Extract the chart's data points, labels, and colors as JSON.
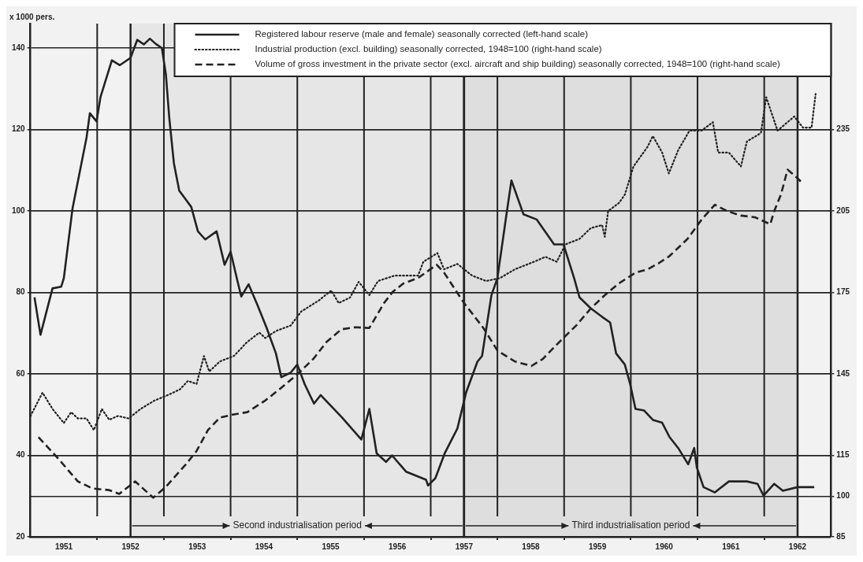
{
  "chart_data": {
    "type": "line",
    "ylabel": "x 1000 pers.",
    "legend": "top right",
    "grid": true,
    "marker": "none",
    "xlim": [
      1951,
      1963
    ],
    "xticks": [
      {
        "value": 1951.5,
        "label": "1951"
      },
      {
        "value": 1952.5,
        "label": "1952"
      },
      {
        "value": 1953.5,
        "label": "1953"
      },
      {
        "value": 1954.5,
        "label": "1954"
      },
      {
        "value": 1955.5,
        "label": "1955"
      },
      {
        "value": 1956.5,
        "label": "1956"
      },
      {
        "value": 1957.5,
        "label": "1957"
      },
      {
        "value": 1958.5,
        "label": "1958"
      },
      {
        "value": 1959.5,
        "label": "1959"
      },
      {
        "value": 1960.5,
        "label": "1960"
      },
      {
        "value": 1961.5,
        "label": "1961"
      },
      {
        "value": 1962.5,
        "label": "1962"
      },
      {
        "value": 1952,
        "label": null
      },
      {
        "value": 1953,
        "label": null
      },
      {
        "value": 1954,
        "label": null
      },
      {
        "value": 1955,
        "label": null
      },
      {
        "value": 1956,
        "label": null
      },
      {
        "value": 1957,
        "label": null
      },
      {
        "value": 1958,
        "label": null
      },
      {
        "value": 1959,
        "label": null
      },
      {
        "value": 1960,
        "label": null
      },
      {
        "value": 1961,
        "label": null
      },
      {
        "value": 1962,
        "label": null
      }
    ],
    "ylim": [
      20,
      146
    ],
    "yticks": [
      20,
      40,
      60,
      80,
      100,
      120,
      140
    ],
    "y2lim": [
      85,
      274
    ],
    "y2ticks": [
      85,
      100,
      115,
      145,
      175,
      205,
      235
    ],
    "bands": [
      {
        "axis": "x",
        "from": 1952.5,
        "to": 1957.5,
        "label": "Second industrialisation period",
        "color": "#e6e6e6"
      },
      {
        "axis": "x",
        "from": 1957.5,
        "to": 1962.5,
        "label": "Third industrialisation period",
        "color": "#dedede"
      }
    ],
    "series": [
      {
        "name": "Registered labour reserve (male and female) seasonally corrected (left-hand scale)",
        "color": "#222222",
        "line_style": "solid",
        "axis": "y",
        "x": [
          1951.06,
          1951.15,
          1951.33,
          1951.46,
          1951.5,
          1951.63,
          1951.84,
          1951.89,
          1951.99,
          1952.05,
          1952.22,
          1952.34,
          1952.5,
          1952.6,
          1952.7,
          1952.79,
          1952.88,
          1952.97,
          1953.03,
          1953.08,
          1953.15,
          1953.23,
          1953.41,
          1953.51,
          1953.62,
          1953.79,
          1953.91,
          1954.0,
          1954.1,
          1954.16,
          1954.27,
          1954.4,
          1954.54,
          1954.68,
          1954.76,
          1954.9,
          1955.0,
          1955.11,
          1955.25,
          1955.35,
          1955.67,
          1955.96,
          1956.08,
          1956.19,
          1956.33,
          1956.42,
          1956.63,
          1956.93,
          1956.96,
          1957.07,
          1957.21,
          1957.4,
          1957.53,
          1957.7,
          1957.77,
          1957.91,
          1958.0,
          1958.13,
          1958.21,
          1958.39,
          1958.59,
          1958.85,
          1958.99,
          1959.15,
          1959.23,
          1959.4,
          1959.57,
          1959.69,
          1959.78,
          1959.91,
          1959.99,
          1960.07,
          1960.2,
          1960.33,
          1960.47,
          1960.58,
          1960.71,
          1960.86,
          1960.95,
          1960.99,
          1961.09,
          1961.26,
          1961.47,
          1961.74,
          1961.9,
          1961.99,
          1962.15,
          1962.28,
          1962.5,
          1962.75
        ],
        "values": [
          78.8,
          69.6,
          81,
          81.4,
          83.5,
          100.6,
          118,
          124,
          122,
          128,
          137,
          135.8,
          137.6,
          142,
          140.9,
          142.3,
          141,
          140,
          133.5,
          123,
          111.7,
          105,
          101,
          95,
          93,
          95,
          86.8,
          90,
          83,
          79,
          82,
          77,
          71.3,
          65,
          59.2,
          60.3,
          62.3,
          57.5,
          52.7,
          54.8,
          49.3,
          43.9,
          51.4,
          40.5,
          38.4,
          40,
          36,
          34,
          32.6,
          34.4,
          40.5,
          46.6,
          55.4,
          63,
          64.4,
          79.3,
          83.5,
          98.5,
          107.5,
          99.2,
          97.9,
          91.8,
          91.8,
          83.5,
          78.8,
          76.1,
          74,
          72.6,
          65,
          62.3,
          57.5,
          51.4,
          51,
          48.7,
          48,
          44.5,
          41.8,
          37.8,
          41.8,
          37,
          32.2,
          30.9,
          33.6,
          33.6,
          33,
          30.1,
          33,
          31.3,
          32.2,
          32.2
        ]
      },
      {
        "name": "Industrial production (excl. building) seasonally corrected, 1948=100 (right-hand scale)",
        "color": "#222222",
        "line_style": "dotted",
        "axis": "y2",
        "x": [
          1951.0,
          1951.18,
          1951.33,
          1951.5,
          1951.61,
          1951.71,
          1951.84,
          1951.95,
          1952.07,
          1952.18,
          1952.31,
          1952.47,
          1952.65,
          1952.86,
          1953.07,
          1953.24,
          1953.36,
          1953.49,
          1953.6,
          1953.68,
          1953.84,
          1954.05,
          1954.25,
          1954.43,
          1954.52,
          1954.68,
          1954.9,
          1955.06,
          1955.32,
          1955.51,
          1955.62,
          1955.79,
          1955.92,
          1956.08,
          1956.21,
          1956.46,
          1956.81,
          1956.89,
          1957.1,
          1957.2,
          1957.4,
          1957.62,
          1957.83,
          1958.04,
          1958.26,
          1958.55,
          1958.72,
          1958.89,
          1959.02,
          1959.23,
          1959.4,
          1959.57,
          1959.61,
          1959.66,
          1959.82,
          1959.91,
          1960.04,
          1960.25,
          1960.33,
          1960.47,
          1960.57,
          1960.71,
          1960.88,
          1961.06,
          1961.23,
          1961.31,
          1961.47,
          1961.65,
          1961.74,
          1961.95,
          1962.03,
          1962.2,
          1962.45,
          1962.58,
          1962.71,
          1962.77
        ],
        "values": [
          129.5,
          138.1,
          132.1,
          126.9,
          130.9,
          128.6,
          128.6,
          124.3,
          132.1,
          128.1,
          129.5,
          128.6,
          132.1,
          135.2,
          137.3,
          139.3,
          142.4,
          141.3,
          151.6,
          145.9,
          149.6,
          151.6,
          156.8,
          160.2,
          158.2,
          160.8,
          162.8,
          168,
          172,
          175.7,
          171.1,
          173.1,
          178.9,
          174,
          179.2,
          181.2,
          181.2,
          186.3,
          189.5,
          183.5,
          185.5,
          181.2,
          179.2,
          180.3,
          183.5,
          186.3,
          188.1,
          186.3,
          192.7,
          194.7,
          198.7,
          199.8,
          195.5,
          205,
          207.9,
          211,
          221.4,
          228.6,
          232.6,
          226.5,
          218.8,
          227.4,
          234.6,
          234.6,
          237.7,
          226.5,
          226.5,
          221.4,
          230.6,
          233.7,
          246.9,
          234.6,
          239.8,
          235.7,
          235.7,
          248.1
        ]
      },
      {
        "name": "Volume of gross investment in the private sector (excl. aircraft and ship building) seasonally corrected, 1948=100 (right-hand scale)",
        "color": "#222222",
        "line_style": "dashed",
        "axis": "y2",
        "x": [
          1951.12,
          1951.42,
          1951.71,
          1951.93,
          1952.18,
          1952.33,
          1952.57,
          1952.84,
          1953.03,
          1953.33,
          1953.49,
          1953.66,
          1953.84,
          1954.05,
          1954.25,
          1954.52,
          1954.73,
          1954.98,
          1955.24,
          1955.44,
          1955.66,
          1955.87,
          1956.08,
          1956.3,
          1956.43,
          1956.59,
          1956.81,
          1957.09,
          1957.2,
          1957.5,
          1957.79,
          1958.0,
          1958.26,
          1958.51,
          1958.68,
          1958.93,
          1959.18,
          1959.4,
          1959.61,
          1959.82,
          1960.07,
          1960.25,
          1960.42,
          1960.58,
          1960.85,
          1961.06,
          1961.26,
          1961.44,
          1961.65,
          1961.86,
          1962.09,
          1962.15,
          1962.25,
          1962.35,
          1962.45,
          1962.58
        ],
        "values": [
          121.7,
          113.7,
          105.4,
          102.8,
          102.2,
          100.8,
          105.4,
          99.4,
          103.4,
          111.7,
          116.6,
          124.3,
          128.9,
          130.1,
          130.9,
          135.2,
          139.3,
          144.4,
          150.5,
          156.8,
          161.4,
          162.2,
          161.9,
          171.1,
          175.2,
          178.3,
          180.3,
          185.2,
          182.3,
          171.1,
          161.9,
          153.6,
          149.6,
          147.9,
          150.5,
          156.8,
          162.8,
          169.1,
          174,
          178.3,
          182.3,
          183.5,
          185.8,
          188.4,
          194.7,
          201.8,
          207.3,
          205,
          203.3,
          202.7,
          200.1,
          205,
          211,
          220.2,
          218.2,
          215.1
        ]
      }
    ]
  }
}
